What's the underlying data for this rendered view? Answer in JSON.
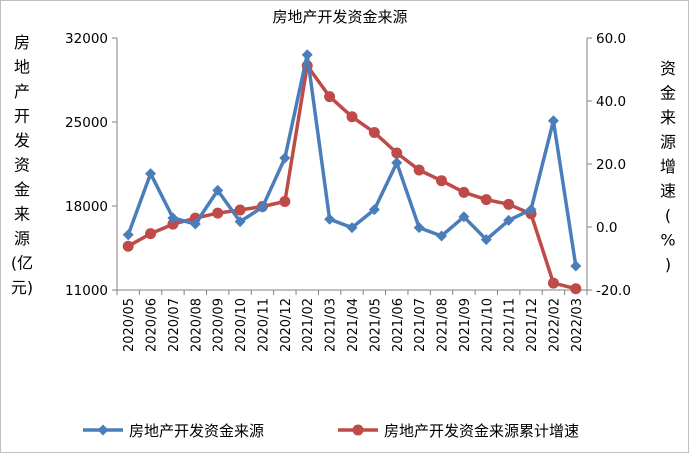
{
  "chart_data": {
    "type": "line",
    "title": "房地产开发资金来源",
    "categories": [
      "2020/05",
      "2020/06",
      "2020/07",
      "2020/08",
      "2020/09",
      "2020/10",
      "2020/11",
      "2020/12",
      "2021/02",
      "2021/03",
      "2021/04",
      "2021/05",
      "2021/06",
      "2021/07",
      "2021/08",
      "2021/09",
      "2021/10",
      "2021/11",
      "2021/12",
      "2022/02",
      "2022/03"
    ],
    "series": [
      {
        "name": "房地产开发资金来源",
        "axis": "left",
        "color": "#4A7EBB",
        "marker": "diamond",
        "values": [
          15600,
          20700,
          17000,
          16500,
          19300,
          16700,
          17900,
          22000,
          30600,
          16900,
          16200,
          17700,
          21600,
          16200,
          15500,
          17100,
          15200,
          16800,
          17700,
          25100,
          13000
        ]
      },
      {
        "name": "房地产开发资金来源累计增速",
        "axis": "right",
        "color": "#BE4B48",
        "marker": "circle",
        "values": [
          -6.1,
          -2.1,
          0.9,
          2.8,
          4.4,
          5.4,
          6.5,
          8.1,
          51.2,
          41.4,
          35.0,
          30.0,
          23.5,
          18.1,
          14.7,
          11.0,
          8.7,
          7.2,
          4.2,
          -17.8,
          -19.6
        ]
      }
    ],
    "y_left": {
      "label": "房地产开发资金来源(亿元)",
      "label_chars": [
        "房",
        "地",
        "产",
        "开",
        "发",
        "资",
        "金",
        "来",
        "源",
        "(亿",
        "元)"
      ],
      "ylim": [
        11000,
        32000
      ],
      "ticks": [
        "11000",
        "18000",
        "25000",
        "32000"
      ],
      "tick_values": [
        11000,
        18000,
        25000,
        32000
      ]
    },
    "y_right": {
      "label": "资金来源增速(%)",
      "label_chars": [
        "资",
        "金",
        "来",
        "源",
        "增",
        "速",
        "(",
        "%",
        ")"
      ],
      "ylim": [
        -20,
        60
      ],
      "ticks": [
        "-20.0",
        "0.0",
        "20.0",
        "40.0",
        "60.0"
      ],
      "tick_values": [
        -20,
        0,
        20,
        40,
        60
      ]
    },
    "grid": false,
    "legend_position": "bottom"
  }
}
